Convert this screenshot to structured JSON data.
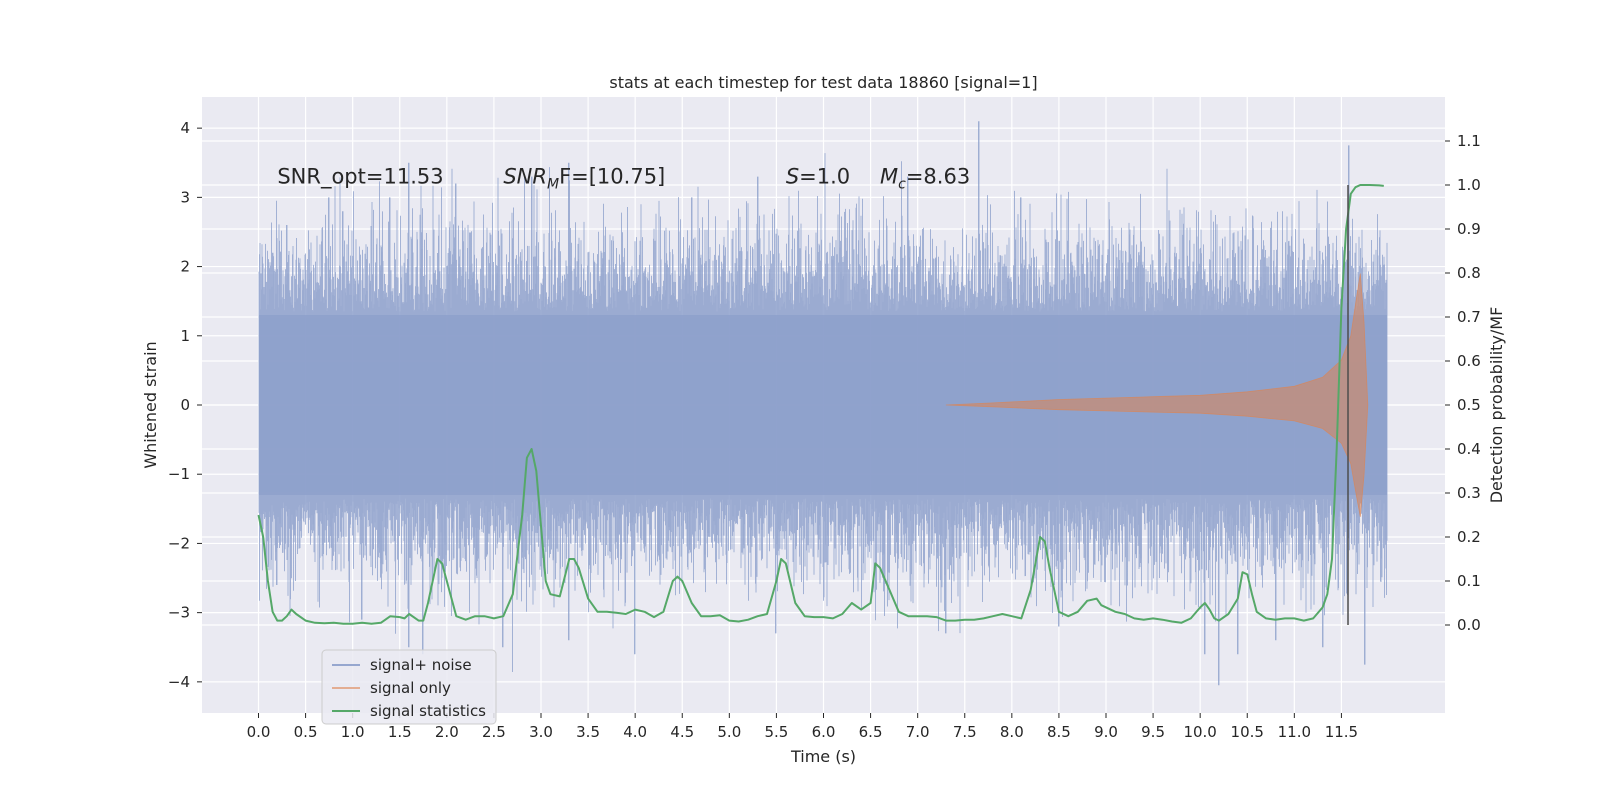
{
  "chart_data": {
    "type": "line",
    "title": "stats at each timestep for test data 18860 [signal=1]",
    "xlabel": "Time (s)",
    "ylabel": "Whitened strain",
    "ylabel_right": "Detection probability/MF",
    "xlim": [
      -0.6,
      12.6
    ],
    "ylim": [
      -4.45,
      4.45
    ],
    "ylim_right": [
      -0.2,
      1.2
    ],
    "x_ticks": [
      0.0,
      0.5,
      1.0,
      1.5,
      2.0,
      2.5,
      3.0,
      3.5,
      4.0,
      4.5,
      5.0,
      5.5,
      6.0,
      6.5,
      7.0,
      7.5,
      8.0,
      8.5,
      9.0,
      9.5,
      10.0,
      10.5,
      11.0,
      11.5
    ],
    "x_tick_labels": [
      "0.0",
      "0.5",
      "1.0",
      "1.5",
      "2.0",
      "2.5",
      "3.0",
      "3.5",
      "4.0",
      "4.5",
      "5.0",
      "5.5",
      "6.0",
      "6.5",
      "7.0",
      "7.5",
      "8.0",
      "8.5",
      "9.0",
      "9.5",
      "10.0",
      "10.5",
      "11.0",
      "11.5"
    ],
    "y_ticks": [
      4,
      3,
      2,
      1,
      0,
      -1,
      -2,
      -3,
      -4
    ],
    "y_tick_labels": [
      "4",
      "3",
      "2",
      "1",
      "0",
      "−1",
      "−2",
      "−3",
      "−4"
    ],
    "y_ticks_right": [
      1.1,
      1.0,
      0.9,
      0.8,
      0.7,
      0.6,
      0.5,
      0.4,
      0.3,
      0.2,
      0.1,
      0.0
    ],
    "y_tick_labels_right": [
      "1.1",
      "1.0",
      "0.9",
      "0.8",
      "0.7",
      "0.6",
      "0.5",
      "0.4",
      "0.3",
      "0.2",
      "0.1",
      "0.0"
    ],
    "grid": true,
    "legend_position": "lower-left",
    "merger_time": 11.57,
    "colors": {
      "background": "#eaeaf2",
      "grid": "#ffffff",
      "noise": "#8da0cb",
      "signal": "#dd8452",
      "stats": "#55a868",
      "marker": "#4d4d4d"
    },
    "annotations": [
      {
        "name": "snr-opt",
        "text": "SNR_opt=11.53",
        "x": 0.2,
        "y": 3.2
      },
      {
        "name": "snr-mf",
        "main": "SNR",
        "sub": "M",
        "rest": "F=[10.75]",
        "x": 2.6,
        "y": 3.2
      },
      {
        "name": "s-value",
        "main": "S",
        "rest": "=1.0",
        "x": 5.6,
        "y": 3.2
      },
      {
        "name": "chirp-mass",
        "main": "M",
        "sub": "c",
        "rest": "=8.63",
        "x": 6.6,
        "y": 3.2
      }
    ],
    "series": [
      {
        "name": "signal+ noise",
        "axis": "left",
        "t_start": 0.0,
        "t_end": 11.98,
        "typical_range": [
          -2.0,
          2.0
        ],
        "peaks": [
          {
            "x": 0.15,
            "y": 2.2
          },
          {
            "x": 0.3,
            "y": 2.6
          },
          {
            "x": 0.75,
            "y": 3.0
          },
          {
            "x": 0.9,
            "y": 2.8
          },
          {
            "x": 1.4,
            "y": 3.0
          },
          {
            "x": 1.6,
            "y": 3.5
          },
          {
            "x": 2.1,
            "y": 3.2
          },
          {
            "x": 2.9,
            "y": 3.3
          },
          {
            "x": 3.3,
            "y": 3.5
          },
          {
            "x": 4.6,
            "y": 3.0
          },
          {
            "x": 5.3,
            "y": 3.3
          },
          {
            "x": 6.9,
            "y": 3.3
          },
          {
            "x": 7.65,
            "y": 4.1
          },
          {
            "x": 8.1,
            "y": 3.0
          },
          {
            "x": 11.58,
            "y": 3.75
          },
          {
            "x": 0.2,
            "y": -2.6
          },
          {
            "x": 1.1,
            "y": -3.1
          },
          {
            "x": 1.6,
            "y": -3.5
          },
          {
            "x": 1.75,
            "y": -3.6
          },
          {
            "x": 2.6,
            "y": -3.5
          },
          {
            "x": 3.3,
            "y": -3.4
          },
          {
            "x": 4.0,
            "y": -3.6
          },
          {
            "x": 5.5,
            "y": -3.3
          },
          {
            "x": 7.3,
            "y": -3.3
          },
          {
            "x": 8.5,
            "y": -3.2
          },
          {
            "x": 10.05,
            "y": -3.6
          },
          {
            "x": 10.2,
            "y": -4.05
          },
          {
            "x": 10.4,
            "y": -3.6
          },
          {
            "x": 10.8,
            "y": -3.4
          },
          {
            "x": 11.3,
            "y": -3.5
          },
          {
            "x": 11.75,
            "y": -3.75
          }
        ]
      },
      {
        "name": "signal only",
        "axis": "left",
        "envelope": [
          [
            7.3,
            0.0
          ],
          [
            7.8,
            0.03
          ],
          [
            8.5,
            0.08
          ],
          [
            9.0,
            0.1
          ],
          [
            9.5,
            0.12
          ],
          [
            10.0,
            0.14
          ],
          [
            10.5,
            0.19
          ],
          [
            11.0,
            0.27
          ],
          [
            11.3,
            0.4
          ],
          [
            11.5,
            0.65
          ],
          [
            11.6,
            1.0
          ],
          [
            11.66,
            1.55
          ],
          [
            11.7,
            1.9
          ],
          [
            11.74,
            1.2
          ],
          [
            11.78,
            0.0
          ]
        ]
      },
      {
        "name": "signal statistics",
        "axis": "right",
        "points": [
          [
            0.0,
            0.25
          ],
          [
            0.05,
            0.2
          ],
          [
            0.1,
            0.1
          ],
          [
            0.15,
            0.03
          ],
          [
            0.2,
            0.01
          ],
          [
            0.25,
            0.01
          ],
          [
            0.3,
            0.02
          ],
          [
            0.35,
            0.035
          ],
          [
            0.4,
            0.025
          ],
          [
            0.5,
            0.01
          ],
          [
            0.6,
            0.005
          ],
          [
            0.7,
            0.004
          ],
          [
            0.8,
            0.005
          ],
          [
            0.9,
            0.003
          ],
          [
            1.0,
            0.003
          ],
          [
            1.1,
            0.005
          ],
          [
            1.2,
            0.003
          ],
          [
            1.3,
            0.005
          ],
          [
            1.4,
            0.02
          ],
          [
            1.5,
            0.018
          ],
          [
            1.55,
            0.015
          ],
          [
            1.6,
            0.025
          ],
          [
            1.7,
            0.01
          ],
          [
            1.75,
            0.01
          ],
          [
            1.8,
            0.05
          ],
          [
            1.9,
            0.15
          ],
          [
            1.95,
            0.14
          ],
          [
            2.0,
            0.1
          ],
          [
            2.1,
            0.02
          ],
          [
            2.2,
            0.012
          ],
          [
            2.3,
            0.02
          ],
          [
            2.4,
            0.02
          ],
          [
            2.5,
            0.015
          ],
          [
            2.6,
            0.02
          ],
          [
            2.7,
            0.07
          ],
          [
            2.8,
            0.25
          ],
          [
            2.85,
            0.38
          ],
          [
            2.9,
            0.4
          ],
          [
            2.95,
            0.35
          ],
          [
            3.05,
            0.1
          ],
          [
            3.1,
            0.07
          ],
          [
            3.2,
            0.065
          ],
          [
            3.3,
            0.15
          ],
          [
            3.35,
            0.15
          ],
          [
            3.4,
            0.13
          ],
          [
            3.5,
            0.06
          ],
          [
            3.6,
            0.03
          ],
          [
            3.7,
            0.03
          ],
          [
            3.8,
            0.028
          ],
          [
            3.9,
            0.025
          ],
          [
            4.0,
            0.035
          ],
          [
            4.1,
            0.03
          ],
          [
            4.2,
            0.018
          ],
          [
            4.3,
            0.03
          ],
          [
            4.4,
            0.1
          ],
          [
            4.45,
            0.11
          ],
          [
            4.5,
            0.1
          ],
          [
            4.6,
            0.05
          ],
          [
            4.7,
            0.02
          ],
          [
            4.8,
            0.02
          ],
          [
            4.9,
            0.022
          ],
          [
            5.0,
            0.01
          ],
          [
            5.1,
            0.008
          ],
          [
            5.2,
            0.012
          ],
          [
            5.3,
            0.02
          ],
          [
            5.4,
            0.025
          ],
          [
            5.5,
            0.1
          ],
          [
            5.55,
            0.15
          ],
          [
            5.6,
            0.14
          ],
          [
            5.7,
            0.05
          ],
          [
            5.8,
            0.02
          ],
          [
            5.9,
            0.018
          ],
          [
            6.0,
            0.018
          ],
          [
            6.1,
            0.015
          ],
          [
            6.2,
            0.025
          ],
          [
            6.3,
            0.05
          ],
          [
            6.4,
            0.035
          ],
          [
            6.5,
            0.05
          ],
          [
            6.55,
            0.14
          ],
          [
            6.6,
            0.13
          ],
          [
            6.7,
            0.08
          ],
          [
            6.8,
            0.03
          ],
          [
            6.9,
            0.02
          ],
          [
            7.0,
            0.02
          ],
          [
            7.1,
            0.02
          ],
          [
            7.2,
            0.018
          ],
          [
            7.3,
            0.01
          ],
          [
            7.4,
            0.01
          ],
          [
            7.5,
            0.012
          ],
          [
            7.6,
            0.012
          ],
          [
            7.7,
            0.015
          ],
          [
            7.8,
            0.02
          ],
          [
            7.9,
            0.025
          ],
          [
            8.0,
            0.02
          ],
          [
            8.1,
            0.015
          ],
          [
            8.2,
            0.08
          ],
          [
            8.3,
            0.2
          ],
          [
            8.35,
            0.19
          ],
          [
            8.4,
            0.13
          ],
          [
            8.5,
            0.03
          ],
          [
            8.6,
            0.02
          ],
          [
            8.7,
            0.03
          ],
          [
            8.8,
            0.055
          ],
          [
            8.9,
            0.06
          ],
          [
            8.95,
            0.045
          ],
          [
            9.1,
            0.03
          ],
          [
            9.2,
            0.025
          ],
          [
            9.3,
            0.015
          ],
          [
            9.4,
            0.012
          ],
          [
            9.5,
            0.015
          ],
          [
            9.6,
            0.012
          ],
          [
            9.7,
            0.008
          ],
          [
            9.8,
            0.005
          ],
          [
            9.9,
            0.015
          ],
          [
            10.0,
            0.04
          ],
          [
            10.05,
            0.05
          ],
          [
            10.1,
            0.035
          ],
          [
            10.15,
            0.015
          ],
          [
            10.2,
            0.01
          ],
          [
            10.3,
            0.025
          ],
          [
            10.4,
            0.06
          ],
          [
            10.45,
            0.12
          ],
          [
            10.5,
            0.115
          ],
          [
            10.55,
            0.07
          ],
          [
            10.6,
            0.03
          ],
          [
            10.7,
            0.015
          ],
          [
            10.8,
            0.012
          ],
          [
            10.9,
            0.015
          ],
          [
            11.0,
            0.015
          ],
          [
            11.1,
            0.01
          ],
          [
            11.2,
            0.015
          ],
          [
            11.3,
            0.04
          ],
          [
            11.35,
            0.07
          ],
          [
            11.4,
            0.15
          ],
          [
            11.45,
            0.4
          ],
          [
            11.5,
            0.72
          ],
          [
            11.55,
            0.9
          ],
          [
            11.6,
            0.98
          ],
          [
            11.65,
            0.995
          ],
          [
            11.7,
            1.0
          ],
          [
            11.8,
            1.0
          ],
          [
            11.9,
            0.999
          ],
          [
            11.95,
            0.998
          ]
        ]
      }
    ]
  }
}
